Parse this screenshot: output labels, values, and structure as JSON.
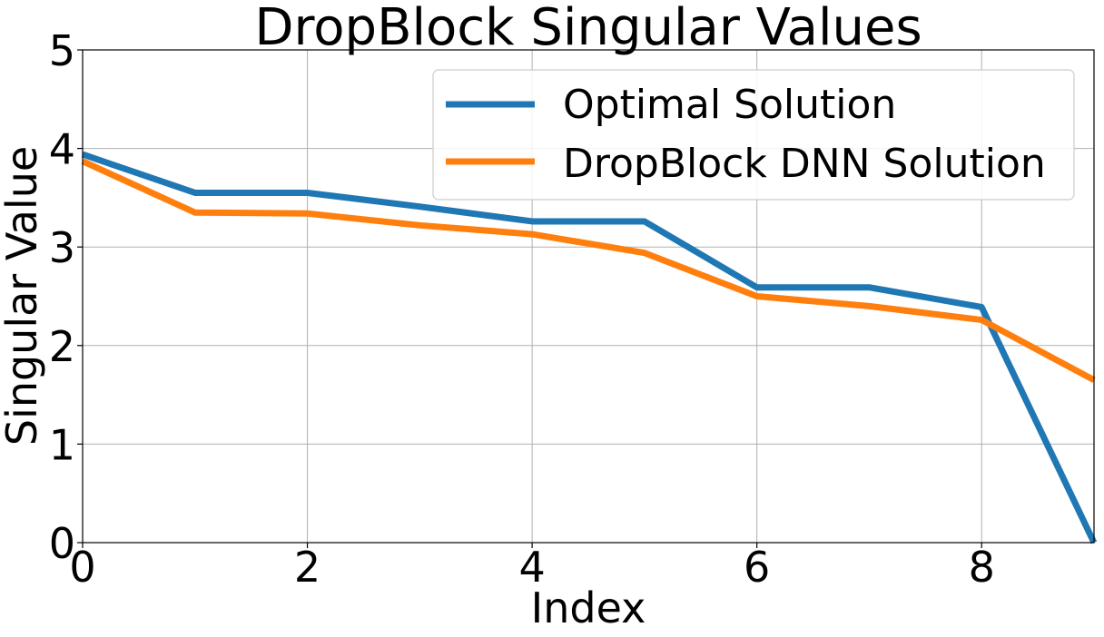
{
  "chart_data": {
    "type": "line",
    "title": "DropBlock Singular Values",
    "xlabel": "Index",
    "ylabel": "Singular Value",
    "xlim": [
      0,
      9
    ],
    "ylim": [
      0,
      5
    ],
    "xticks": [
      0,
      2,
      4,
      6,
      8
    ],
    "yticks": [
      0,
      1,
      2,
      3,
      4,
      5
    ],
    "grid": true,
    "legend_position": "top-right",
    "x": [
      0,
      1,
      2,
      3,
      4,
      5,
      6,
      7,
      8,
      9
    ],
    "series": [
      {
        "name": "Optimal Solution",
        "color": "#1f77b4",
        "values": [
          3.94,
          3.55,
          3.55,
          3.41,
          3.26,
          3.26,
          2.59,
          2.59,
          2.39,
          0.0
        ]
      },
      {
        "name": "DropBlock DNN Solution",
        "color": "#ff7f0e",
        "values": [
          3.87,
          3.35,
          3.34,
          3.22,
          3.13,
          2.94,
          2.5,
          2.4,
          2.26,
          1.65
        ]
      }
    ]
  }
}
